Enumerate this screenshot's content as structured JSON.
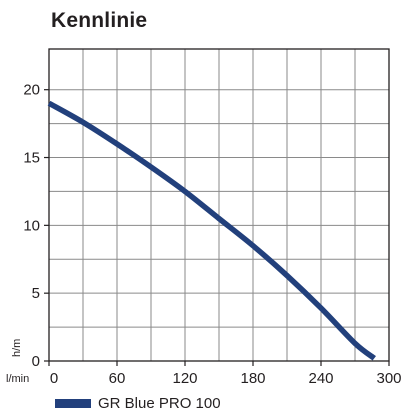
{
  "chart_data": {
    "type": "line",
    "title": "Kennlinie",
    "xlabel": "l/min",
    "ylabel": "h/m",
    "xlim": [
      0,
      300
    ],
    "ylim": [
      0,
      23
    ],
    "xticks": [
      0,
      60,
      120,
      180,
      240,
      300
    ],
    "yticks": [
      0,
      5,
      10,
      15,
      20
    ],
    "x_grid": [
      0,
      30,
      60,
      90,
      120,
      150,
      180,
      210,
      240,
      270,
      300
    ],
    "y_grid": [
      0,
      2.5,
      5,
      7.5,
      10,
      12.5,
      15,
      17.5,
      20
    ],
    "grid": true,
    "legend_position": "bottom-left",
    "series": [
      {
        "name": "GR Blue PRO 100",
        "color": "#22407c",
        "x": [
          0,
          30,
          60,
          90,
          120,
          150,
          180,
          210,
          240,
          270,
          287
        ],
        "y": [
          19,
          17.6,
          16,
          14.3,
          12.5,
          10.5,
          8.5,
          6.3,
          3.9,
          1.3,
          0.2
        ]
      }
    ]
  }
}
